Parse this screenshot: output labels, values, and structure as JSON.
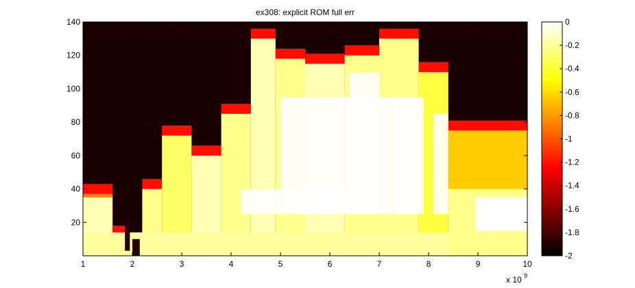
{
  "chart_data": {
    "type": "heatmap",
    "title": "ex308: explicit ROM full err",
    "xlabel": "",
    "ylabel": "",
    "x_multiplier_label": "x 10",
    "x_multiplier_exponent": "9",
    "xlim": [
      1,
      10
    ],
    "ylim": [
      0,
      140
    ],
    "x_ticks": [
      "1",
      "2",
      "3",
      "4",
      "5",
      "6",
      "7",
      "8",
      "9",
      "10"
    ],
    "y_ticks": [
      "20",
      "40",
      "60",
      "80",
      "100",
      "120",
      "140"
    ],
    "colorbar": {
      "clim": [
        -2,
        0
      ],
      "ticks": [
        "0",
        "-0.2",
        "-0.4",
        "-0.6",
        "-0.8",
        "-1",
        "-1.2",
        "-1.4",
        "-1.6",
        "-1.8",
        "-2"
      ],
      "colormap": "hot"
    },
    "regions": [
      {
        "x": [
          1.0,
          1.6
        ],
        "y_top": 37,
        "value": -0.2
      },
      {
        "x": [
          1.6,
          1.9
        ],
        "y_top": 12,
        "value": -0.3
      },
      {
        "x": [
          1.9,
          2.2
        ],
        "y_top": 3,
        "value": -0.3
      },
      {
        "x": [
          2.2,
          2.6
        ],
        "y_top": 40,
        "value": -0.3
      },
      {
        "x": [
          2.6,
          3.2
        ],
        "y_top": 72,
        "value": -0.4
      },
      {
        "x": [
          3.2,
          3.8
        ],
        "y_top": 60,
        "value": -0.2
      },
      {
        "x": [
          3.8,
          4.4
        ],
        "y_top": 85,
        "value": -0.3
      },
      {
        "x": [
          4.4,
          4.9
        ],
        "y_top": 130,
        "value": -0.2
      },
      {
        "x": [
          4.9,
          5.5
        ],
        "y_top": 118,
        "value": -0.3
      },
      {
        "x": [
          5.5,
          6.3
        ],
        "y_top": 115,
        "value": -0.2
      },
      {
        "x": [
          6.3,
          7.0
        ],
        "y_top": 120,
        "value": -0.3
      },
      {
        "x": [
          7.0,
          7.8
        ],
        "y_top": 130,
        "value": -0.3
      },
      {
        "x": [
          7.8,
          8.4
        ],
        "y_top": 110,
        "value": -0.5
      },
      {
        "x": [
          8.4,
          10.0
        ],
        "y_top": 75,
        "value": -0.8
      }
    ]
  }
}
